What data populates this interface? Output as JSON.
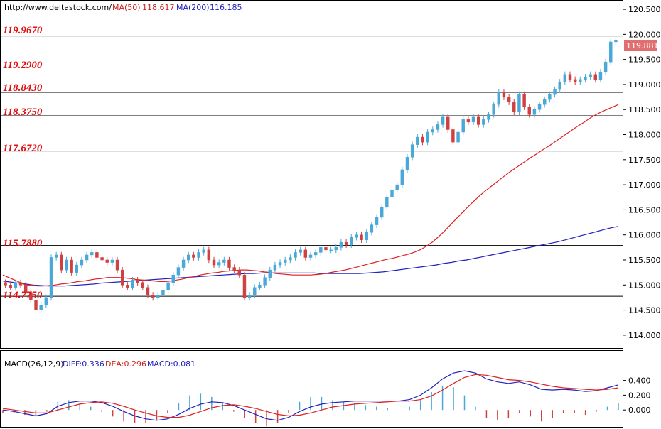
{
  "header": {
    "site": "http://www.deltastock.com/",
    "ma50_label": "MA(50)",
    "ma50_value": "118.617",
    "ma200_label": "MA(200)",
    "ma200_value": "116.185"
  },
  "current_price": "119.881",
  "levels": [
    "119.9670",
    "119.2900",
    "118.8430",
    "118.3750",
    "117.6720",
    "115.7880",
    "114.7750"
  ],
  "macd_header": {
    "name": "MACD(26,12,9)",
    "diff": "DIFF:0.336",
    "dea": "DEA:0.296",
    "macd": "MACD:0.081"
  },
  "colors": {
    "up": "#4aa8d8",
    "down": "#d04040",
    "ma50": "#e02020",
    "ma200": "#2020c0",
    "level_text": "#e01010"
  },
  "chart_data": [
    {
      "type": "candlestick",
      "y_ticks": [
        "120.500",
        "120.000",
        "119.500",
        "119.000",
        "118.500",
        "118.000",
        "117.500",
        "117.000",
        "116.500",
        "116.000",
        "115.500",
        "115.000",
        "114.500",
        "114.000"
      ],
      "ylim": [
        113.8,
        120.6
      ],
      "horizontal_levels": [
        119.967,
        119.29,
        118.843,
        118.375,
        117.672,
        115.788,
        114.775
      ],
      "close": [
        115.0,
        114.95,
        115.05,
        115.0,
        114.85,
        114.7,
        114.5,
        114.6,
        114.75,
        115.55,
        115.6,
        115.3,
        115.5,
        115.25,
        115.4,
        115.5,
        115.6,
        115.65,
        115.55,
        115.5,
        115.45,
        115.5,
        115.3,
        115.0,
        114.95,
        115.1,
        115.05,
        114.95,
        114.8,
        114.75,
        114.8,
        114.9,
        115.05,
        115.2,
        115.35,
        115.5,
        115.6,
        115.55,
        115.65,
        115.7,
        115.5,
        115.4,
        115.45,
        115.5,
        115.35,
        115.3,
        115.2,
        114.75,
        114.8,
        114.95,
        115.0,
        115.15,
        115.3,
        115.4,
        115.45,
        115.5,
        115.55,
        115.65,
        115.7,
        115.55,
        115.6,
        115.65,
        115.75,
        115.7,
        115.7,
        115.75,
        115.85,
        115.8,
        115.95,
        116.0,
        115.9,
        116.05,
        116.2,
        116.35,
        116.55,
        116.75,
        116.9,
        117.0,
        117.3,
        117.55,
        117.8,
        117.95,
        117.85,
        118.05,
        118.1,
        118.2,
        118.35,
        118.1,
        117.85,
        118.05,
        118.3,
        118.25,
        118.35,
        118.2,
        118.3,
        118.4,
        118.6,
        118.85,
        118.75,
        118.65,
        118.45,
        118.8,
        118.55,
        118.4,
        118.5,
        118.6,
        118.7,
        118.8,
        118.9,
        119.05,
        119.2,
        119.1,
        119.05,
        119.1,
        119.15,
        119.2,
        119.1,
        119.25,
        119.45,
        119.85,
        119.88
      ],
      "ma50": [
        115.2,
        115.15,
        115.1,
        115.05,
        115.0,
        115.0,
        114.98,
        114.98,
        114.99,
        115.0,
        115.02,
        115.03,
        115.05,
        115.07,
        115.08,
        115.1,
        115.12,
        115.13,
        115.15,
        115.15,
        115.15,
        115.14,
        115.13,
        115.11,
        115.1,
        115.09,
        115.08,
        115.07,
        115.07,
        115.08,
        115.1,
        115.12,
        115.15,
        115.17,
        115.2,
        115.22,
        115.24,
        115.25,
        115.27,
        115.28,
        115.29,
        115.3,
        115.3,
        115.29,
        115.28,
        115.26,
        115.25,
        115.23,
        115.22,
        115.21,
        115.2,
        115.2,
        115.2,
        115.2,
        115.21,
        115.22,
        115.24,
        115.26,
        115.28,
        115.3,
        115.33,
        115.36,
        115.39,
        115.42,
        115.45,
        115.48,
        115.51,
        115.53,
        115.56,
        115.59,
        115.62,
        115.66,
        115.71,
        115.78,
        115.86,
        115.96,
        116.07,
        116.19,
        116.31,
        116.43,
        116.55,
        116.66,
        116.77,
        116.87,
        116.96,
        117.05,
        117.14,
        117.23,
        117.31,
        117.39,
        117.47,
        117.55,
        117.62,
        117.7,
        117.77,
        117.85,
        117.93,
        118.01,
        118.09,
        118.17,
        118.24,
        118.32,
        118.39,
        118.45,
        118.5,
        118.55,
        118.6
      ],
      "ma200": [
        115.08,
        115.06,
        115.04,
        115.02,
        115.0,
        114.99,
        114.98,
        114.98,
        114.98,
        114.99,
        115.0,
        115.01,
        115.02,
        115.04,
        115.05,
        115.06,
        115.07,
        115.08,
        115.09,
        115.1,
        115.11,
        115.12,
        115.13,
        115.14,
        115.15,
        115.16,
        115.17,
        115.18,
        115.19,
        115.2,
        115.21,
        115.22,
        115.23,
        115.23,
        115.24,
        115.24,
        115.24,
        115.24,
        115.24,
        115.24,
        115.24,
        115.24,
        115.23,
        115.23,
        115.23,
        115.23,
        115.23,
        115.23,
        115.24,
        115.25,
        115.26,
        115.28,
        115.3,
        115.32,
        115.34,
        115.36,
        115.38,
        115.4,
        115.43,
        115.45,
        115.48,
        115.5,
        115.53,
        115.56,
        115.59,
        115.62,
        115.65,
        115.68,
        115.71,
        115.74,
        115.77,
        115.8,
        115.83,
        115.86,
        115.9,
        115.94,
        115.98,
        116.02,
        116.06,
        116.1,
        116.14,
        116.17
      ]
    },
    {
      "type": "macd",
      "y_ticks": [
        "0.400",
        "0.200",
        "0.000"
      ],
      "ylim": [
        -0.2,
        0.55
      ],
      "diff": [
        0.0,
        -0.02,
        -0.05,
        -0.08,
        -0.05,
        0.05,
        0.1,
        0.12,
        0.12,
        0.1,
        0.05,
        -0.02,
        -0.08,
        -0.12,
        -0.14,
        -0.12,
        -0.06,
        0.02,
        0.08,
        0.11,
        0.1,
        0.06,
        0.0,
        -0.06,
        -0.12,
        -0.14,
        -0.1,
        -0.02,
        0.04,
        0.08,
        0.1,
        0.11,
        0.12,
        0.12,
        0.12,
        0.12,
        0.12,
        0.14,
        0.2,
        0.3,
        0.42,
        0.5,
        0.53,
        0.5,
        0.42,
        0.38,
        0.36,
        0.38,
        0.34,
        0.28,
        0.27,
        0.28,
        0.27,
        0.25,
        0.26,
        0.3,
        0.34
      ],
      "dea": [
        0.02,
        0.0,
        -0.02,
        -0.04,
        -0.04,
        0.0,
        0.04,
        0.08,
        0.1,
        0.11,
        0.09,
        0.05,
        0.0,
        -0.04,
        -0.08,
        -0.1,
        -0.1,
        -0.07,
        -0.02,
        0.03,
        0.06,
        0.07,
        0.05,
        0.02,
        -0.02,
        -0.06,
        -0.08,
        -0.07,
        -0.04,
        0.0,
        0.04,
        0.06,
        0.08,
        0.09,
        0.1,
        0.11,
        0.12,
        0.12,
        0.14,
        0.19,
        0.27,
        0.36,
        0.44,
        0.48,
        0.47,
        0.44,
        0.41,
        0.4,
        0.38,
        0.35,
        0.32,
        0.3,
        0.29,
        0.28,
        0.27,
        0.28,
        0.3
      ]
    }
  ]
}
